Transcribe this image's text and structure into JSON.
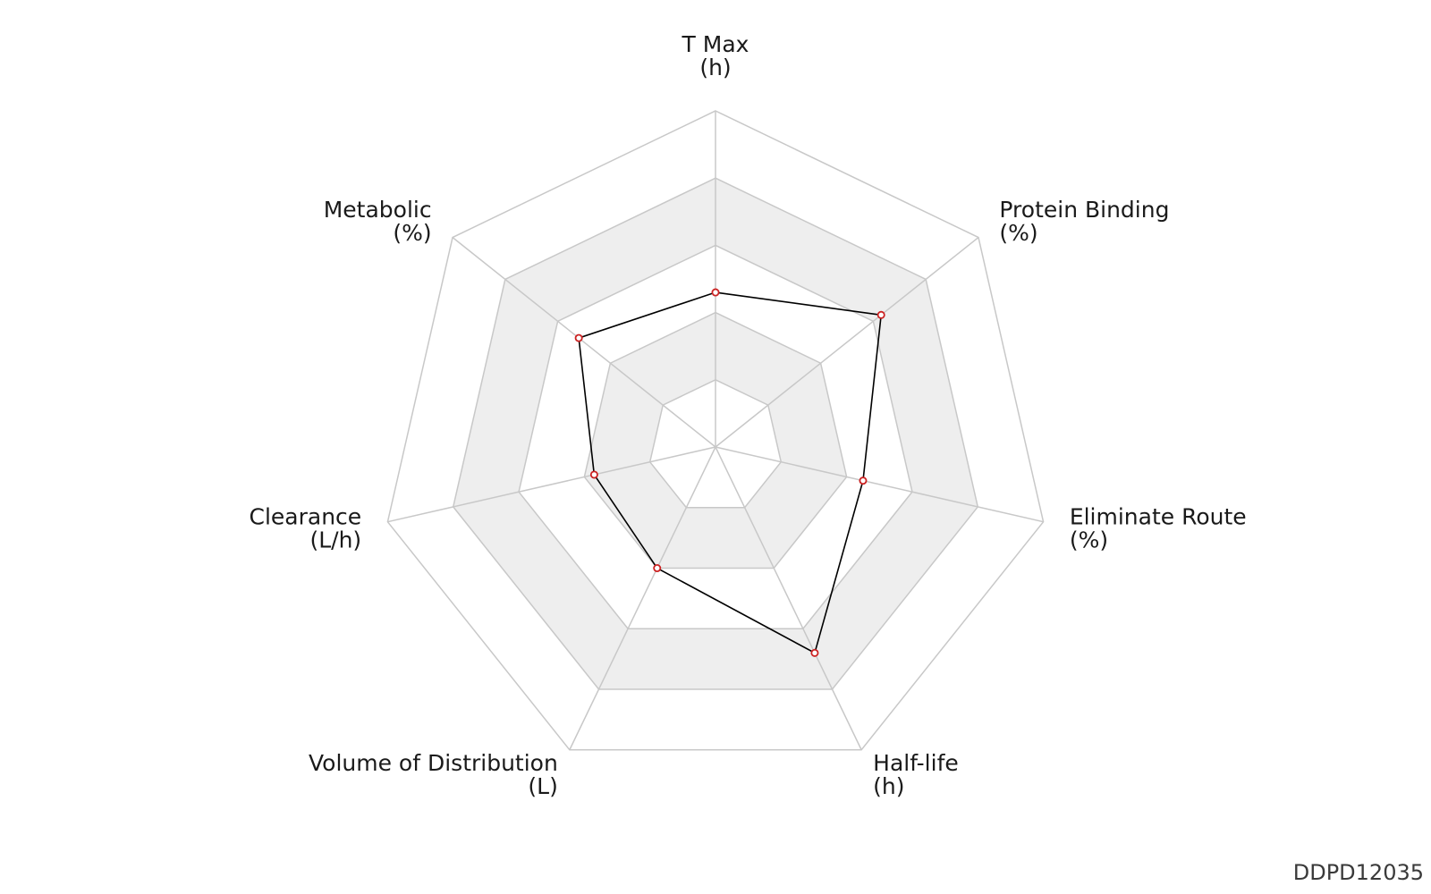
{
  "chart_data": {
    "type": "radar",
    "axes": [
      {
        "name": "T Max",
        "unit": "(h)"
      },
      {
        "name": "Protein Binding",
        "unit": "(%)"
      },
      {
        "name": "Eliminate Route",
        "unit": "(%)"
      },
      {
        "name": "Half-life",
        "unit": "(h)"
      },
      {
        "name": "Volume of Distribution",
        "unit": "(L)"
      },
      {
        "name": "Clearance",
        "unit": "(L/h)"
      },
      {
        "name": "Metabolic",
        "unit": "(%)"
      }
    ],
    "rings": 5,
    "range": [
      0,
      1
    ],
    "values": [
      0.46,
      0.63,
      0.45,
      0.68,
      0.4,
      0.37,
      0.52
    ],
    "colors": {
      "line": "#000000",
      "marker": "#cc2222",
      "grid": "#c8c8c8",
      "band": "#eeeeee"
    }
  },
  "watermark": "DDPD12035"
}
